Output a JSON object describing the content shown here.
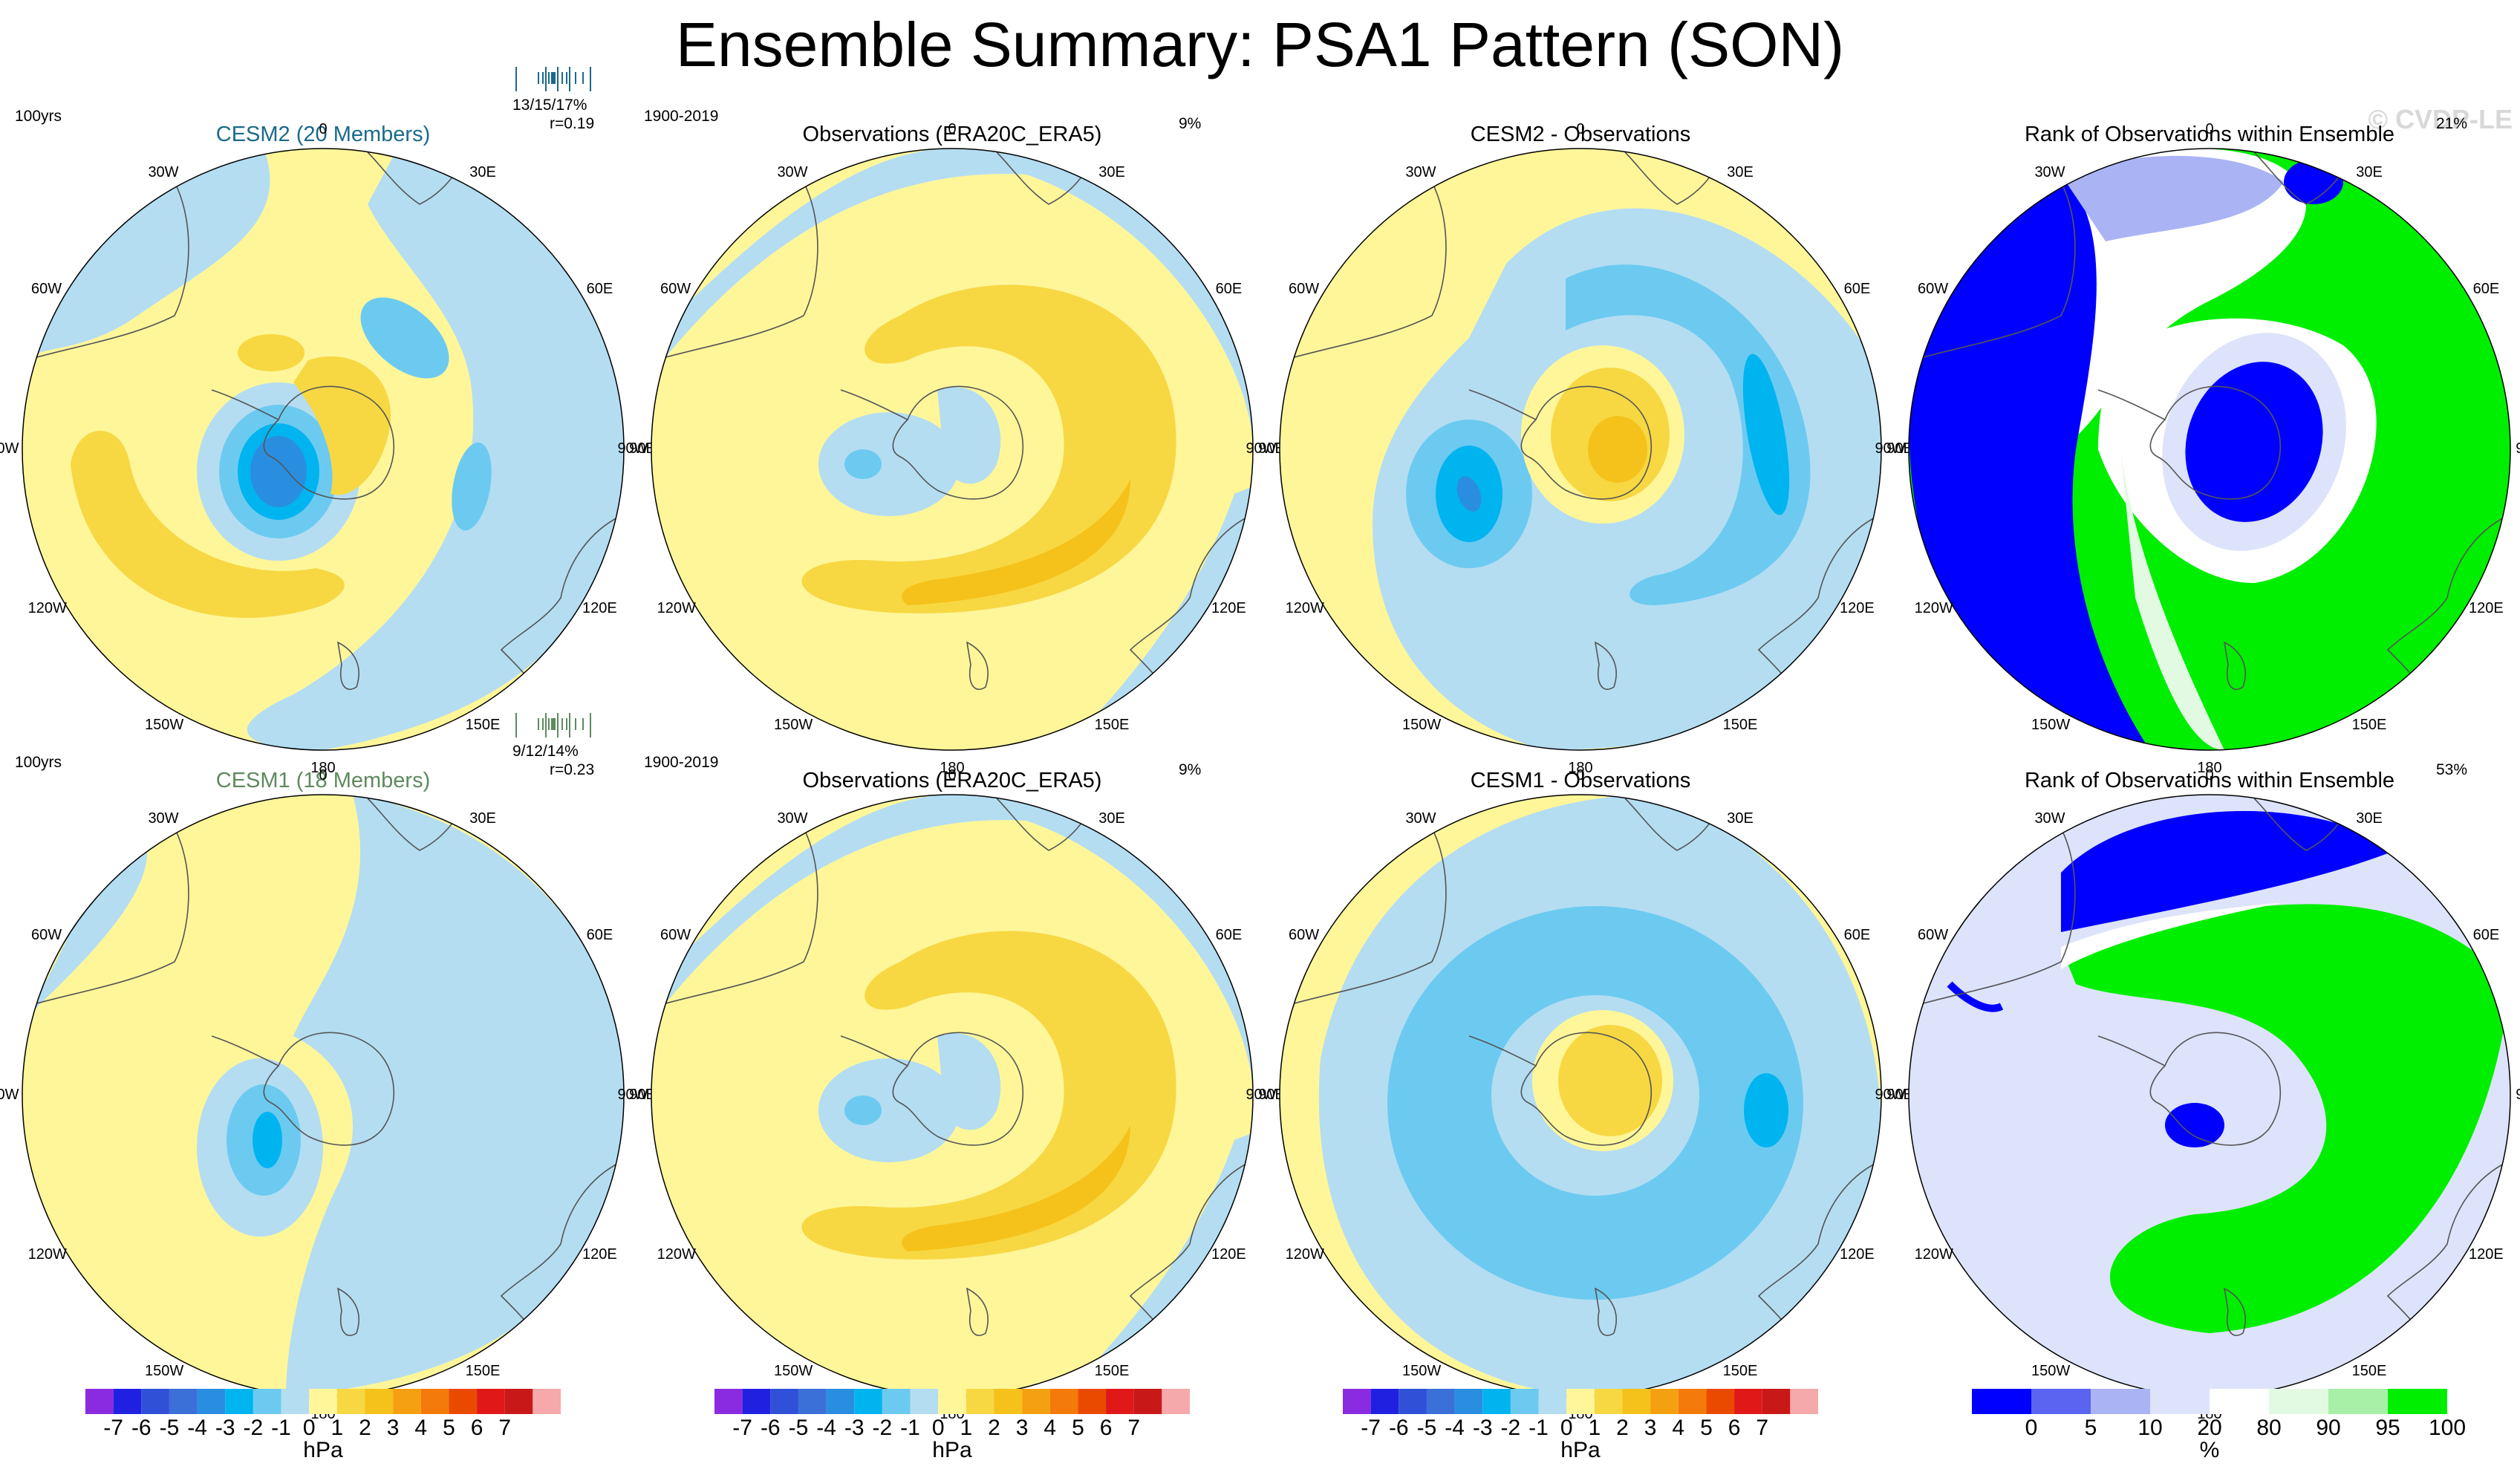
{
  "title": "Ensemble Summary: PSA1 Pattern (SON)",
  "watermark": "© CVDP-LE",
  "longitude_labels": [
    "0",
    "30E",
    "60E",
    "90E",
    "120E",
    "150E",
    "180",
    "150W",
    "120W",
    "90W",
    "60W",
    "30W"
  ],
  "rows": [
    {
      "panels": [
        {
          "title": "CESM2 (20 Members)",
          "title_color": "#1b6a8a",
          "corner_left": "100yrs",
          "stat_line1": "13/15/17%",
          "stat_line2": "r=0.19",
          "kind": "model"
        },
        {
          "title": "Observations (ERA20C_ERA5)",
          "title_color": "#000000",
          "corner_left": "1900-2019",
          "corner_right": "9%",
          "kind": "obs"
        },
        {
          "title": "CESM2 - Observations",
          "title_color": "#000000",
          "kind": "diff"
        },
        {
          "title": "Rank of Observations within Ensemble",
          "title_color": "#000000",
          "corner_right": "21%",
          "kind": "rank"
        }
      ]
    },
    {
      "panels": [
        {
          "title": "CESM1 (18 Members)",
          "title_color": "#5e8a5e",
          "corner_left": "100yrs",
          "stat_line1": "9/12/14%",
          "stat_line2": "r=0.23",
          "kind": "model"
        },
        {
          "title": "Observations (ERA20C_ERA5)",
          "title_color": "#000000",
          "corner_left": "1900-2019",
          "corner_right": "9%",
          "kind": "obs"
        },
        {
          "title": "CESM1 - Observations",
          "title_color": "#000000",
          "kind": "diff"
        },
        {
          "title": "Rank of Observations within Ensemble",
          "title_color": "#000000",
          "corner_right": "53%",
          "kind": "rank"
        }
      ]
    }
  ],
  "hpa_colorbar": {
    "unit": "hPa",
    "labels": [
      "-7",
      "-6",
      "-5",
      "-4",
      "-3",
      "-2",
      "-1",
      "0",
      "1",
      "2",
      "3",
      "4",
      "5",
      "6",
      "7"
    ],
    "colors": [
      "#8a2be2",
      "#2020e0",
      "#3050d8",
      "#3a70d8",
      "#2a8ee0",
      "#00b4f0",
      "#6ccaf0",
      "#b4ddf2",
      "#fff69a",
      "#f7d843",
      "#f5c21b",
      "#f5a010",
      "#f47a0a",
      "#ea4a00",
      "#e01818",
      "#c81818",
      "#f6a9aa"
    ]
  },
  "rank_colorbar": {
    "unit": "%",
    "labels": [
      "0",
      "5",
      "10",
      "20",
      "80",
      "90",
      "95",
      "100"
    ],
    "colors": [
      "#0000ff",
      "#5a64f0",
      "#aab4f5",
      "#dde3fa",
      "#ffffff",
      "#e2fae2",
      "#a8f0a8",
      "#00ee00"
    ]
  },
  "colors": {
    "pos1": "#fff69a",
    "pos2": "#f7d843",
    "pos3": "#f5c21b",
    "pos4": "#f5a010",
    "neg1": "#b4ddf2",
    "neg2": "#6ccaf0",
    "neg3": "#00b4f0",
    "neg4": "#2a8ee0",
    "rank_blue": "#0000ff",
    "rank_green": "#00ee00",
    "rank_light_green": "#e2fae2",
    "rank_lavender": "#aab4f5",
    "rank_pale": "#dde3fa",
    "coast": "#555555"
  }
}
